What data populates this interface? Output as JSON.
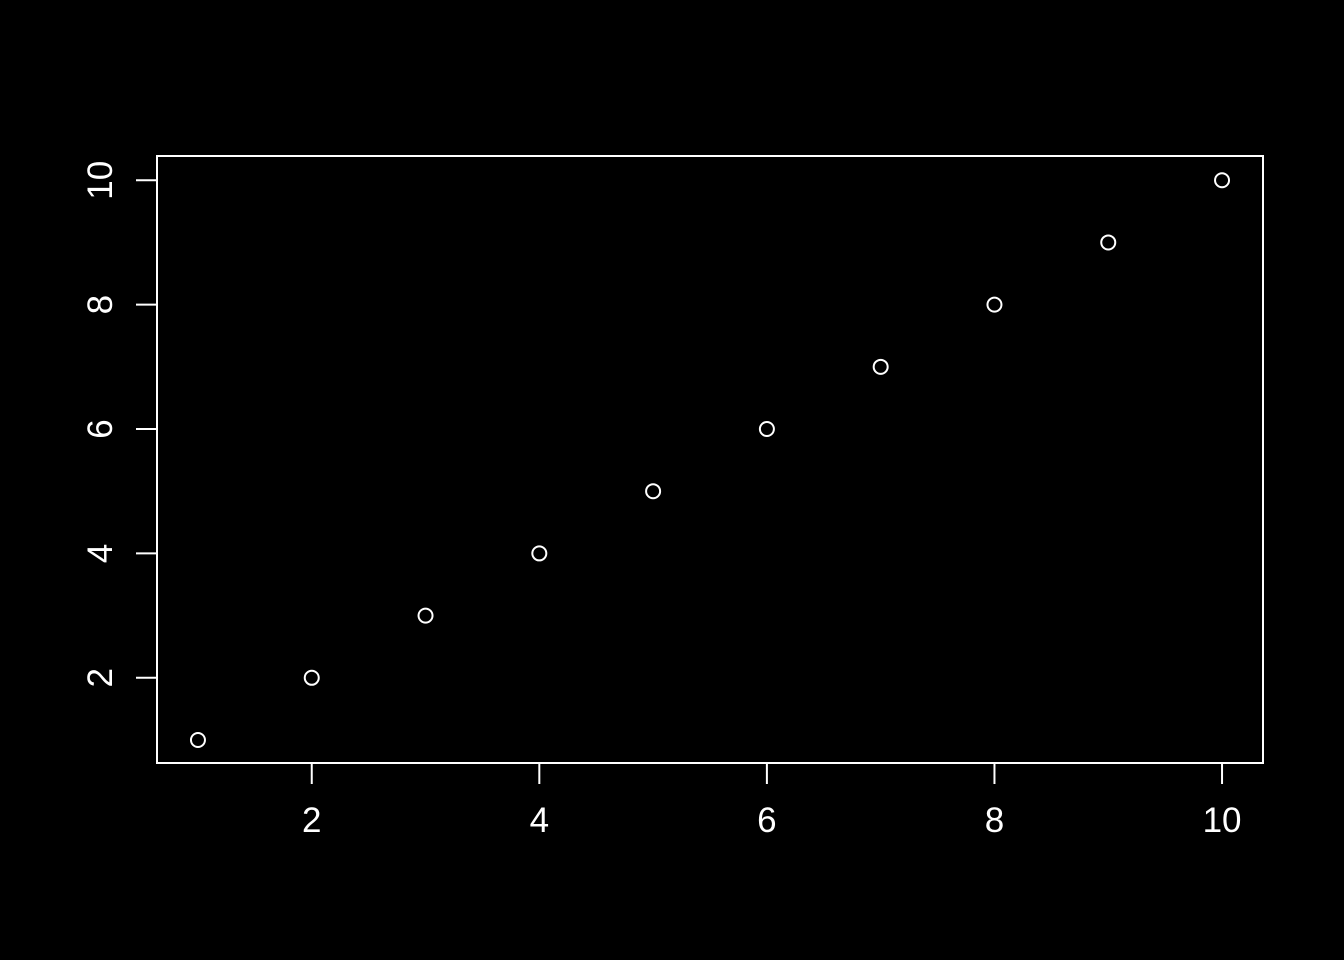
{
  "figure": {
    "background_color": "#000000",
    "foreground_color": "#ffffff"
  },
  "chart_data": {
    "type": "scatter",
    "title": "",
    "xlabel": "",
    "ylabel": "",
    "x": [
      1,
      2,
      3,
      4,
      5,
      6,
      7,
      8,
      9,
      10
    ],
    "y": [
      1,
      2,
      3,
      4,
      5,
      6,
      7,
      8,
      9,
      10
    ],
    "x_ticks": [
      2,
      4,
      6,
      8,
      10
    ],
    "y_ticks": [
      2,
      4,
      6,
      8,
      10
    ],
    "x_tick_labels": [
      "2",
      "4",
      "6",
      "8",
      "10"
    ],
    "y_tick_labels": [
      "2",
      "4",
      "6",
      "8",
      "10"
    ],
    "xlim": [
      0.64,
      10.36
    ],
    "ylim": [
      0.63,
      10.39
    ],
    "grid": false,
    "legend": null,
    "marker": "open-circle",
    "marker_color": "#ffffff",
    "axis_color": "#ffffff",
    "background_color": "#000000",
    "y_tick_label_rotation_deg": 90
  }
}
